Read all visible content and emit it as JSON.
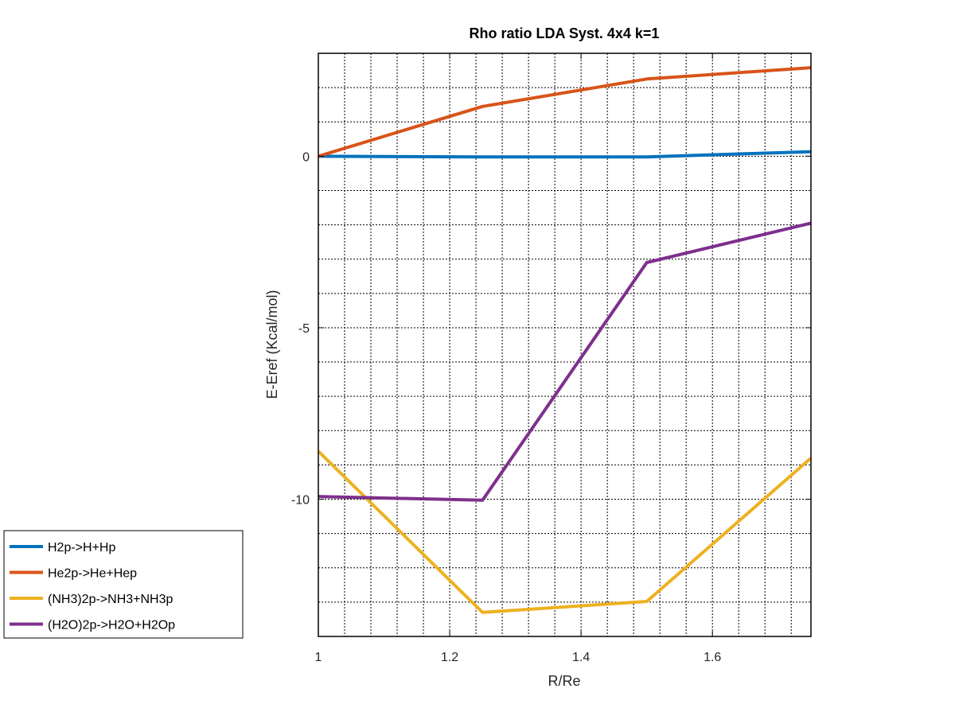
{
  "chart_data": {
    "type": "line",
    "title": "Rho ratio LDA  Syst. 4x4 k=1",
    "xlabel": "R/Re",
    "ylabel": "E-Eref (Kcal/mol)",
    "xlim": [
      1,
      1.75
    ],
    "ylim": [
      -14,
      3
    ],
    "xticks": [
      1,
      1.2,
      1.4,
      1.6
    ],
    "xtick_labels": [
      "1",
      "1.2",
      "1.4",
      "1.6"
    ],
    "yticks": [
      -10,
      -5,
      0
    ],
    "ytick_labels": [
      "-10",
      "-5",
      "0"
    ],
    "grid": "dotted",
    "x_minor_step": 0.04,
    "legend_position": "outside-bottom-left",
    "x": [
      1,
      1.25,
      1.5,
      1.75
    ],
    "series": [
      {
        "name": "H2p->H+Hp",
        "color": "#0072bd",
        "values": [
          0.0,
          -0.02,
          -0.02,
          0.13
        ]
      },
      {
        "name": "He2p->He+Hep",
        "color": "#d95319",
        "values": [
          0.0,
          1.45,
          2.25,
          2.58
        ]
      },
      {
        "name": "(NH3)2p->NH3+NH3p",
        "color": "#edb120",
        "values": [
          -8.6,
          -13.3,
          -12.98,
          -8.8
        ]
      },
      {
        "name": "(H2O)2p->H2O+H2Op",
        "color": "#7e2f8e",
        "values": [
          -9.92,
          -10.03,
          -3.1,
          -1.95
        ]
      }
    ]
  }
}
